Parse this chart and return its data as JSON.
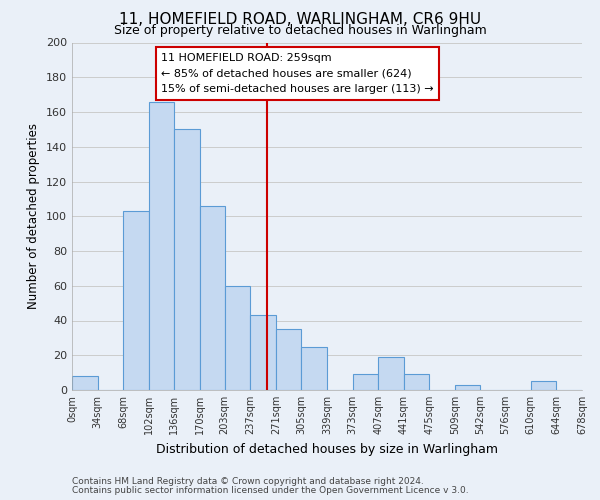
{
  "title": "11, HOMEFIELD ROAD, WARLINGHAM, CR6 9HU",
  "subtitle": "Size of property relative to detached houses in Warlingham",
  "xlabel": "Distribution of detached houses by size in Warlingham",
  "ylabel": "Number of detached properties",
  "bar_edges": [
    0,
    34,
    68,
    102,
    136,
    170,
    203,
    237,
    271,
    305,
    339,
    373,
    407,
    441,
    475,
    509,
    542,
    576,
    610,
    644,
    678
  ],
  "bar_heights": [
    8,
    0,
    103,
    166,
    150,
    106,
    60,
    43,
    35,
    25,
    0,
    9,
    19,
    9,
    0,
    3,
    0,
    0,
    5,
    0
  ],
  "bar_color": "#c5d9f1",
  "bar_edge_color": "#5b9bd5",
  "tick_labels": [
    "0sqm",
    "34sqm",
    "68sqm",
    "102sqm",
    "136sqm",
    "170sqm",
    "203sqm",
    "237sqm",
    "271sqm",
    "305sqm",
    "339sqm",
    "373sqm",
    "407sqm",
    "441sqm",
    "475sqm",
    "509sqm",
    "542sqm",
    "576sqm",
    "610sqm",
    "644sqm",
    "678sqm"
  ],
  "vline_x": 259,
  "vline_color": "#cc0000",
  "annotation_title": "11 HOMEFIELD ROAD: 259sqm",
  "annotation_line1": "← 85% of detached houses are smaller (624)",
  "annotation_line2": "15% of semi-detached houses are larger (113) →",
  "annotation_box_color": "#ffffff",
  "annotation_box_edge": "#cc0000",
  "ylim": [
    0,
    200
  ],
  "yticks": [
    0,
    20,
    40,
    60,
    80,
    100,
    120,
    140,
    160,
    180,
    200
  ],
  "footer1": "Contains HM Land Registry data © Crown copyright and database right 2024.",
  "footer2": "Contains public sector information licensed under the Open Government Licence v 3.0.",
  "bg_color": "#eaf0f8",
  "plot_bg_color": "#eaf0f8",
  "grid_color": "#cccccc"
}
